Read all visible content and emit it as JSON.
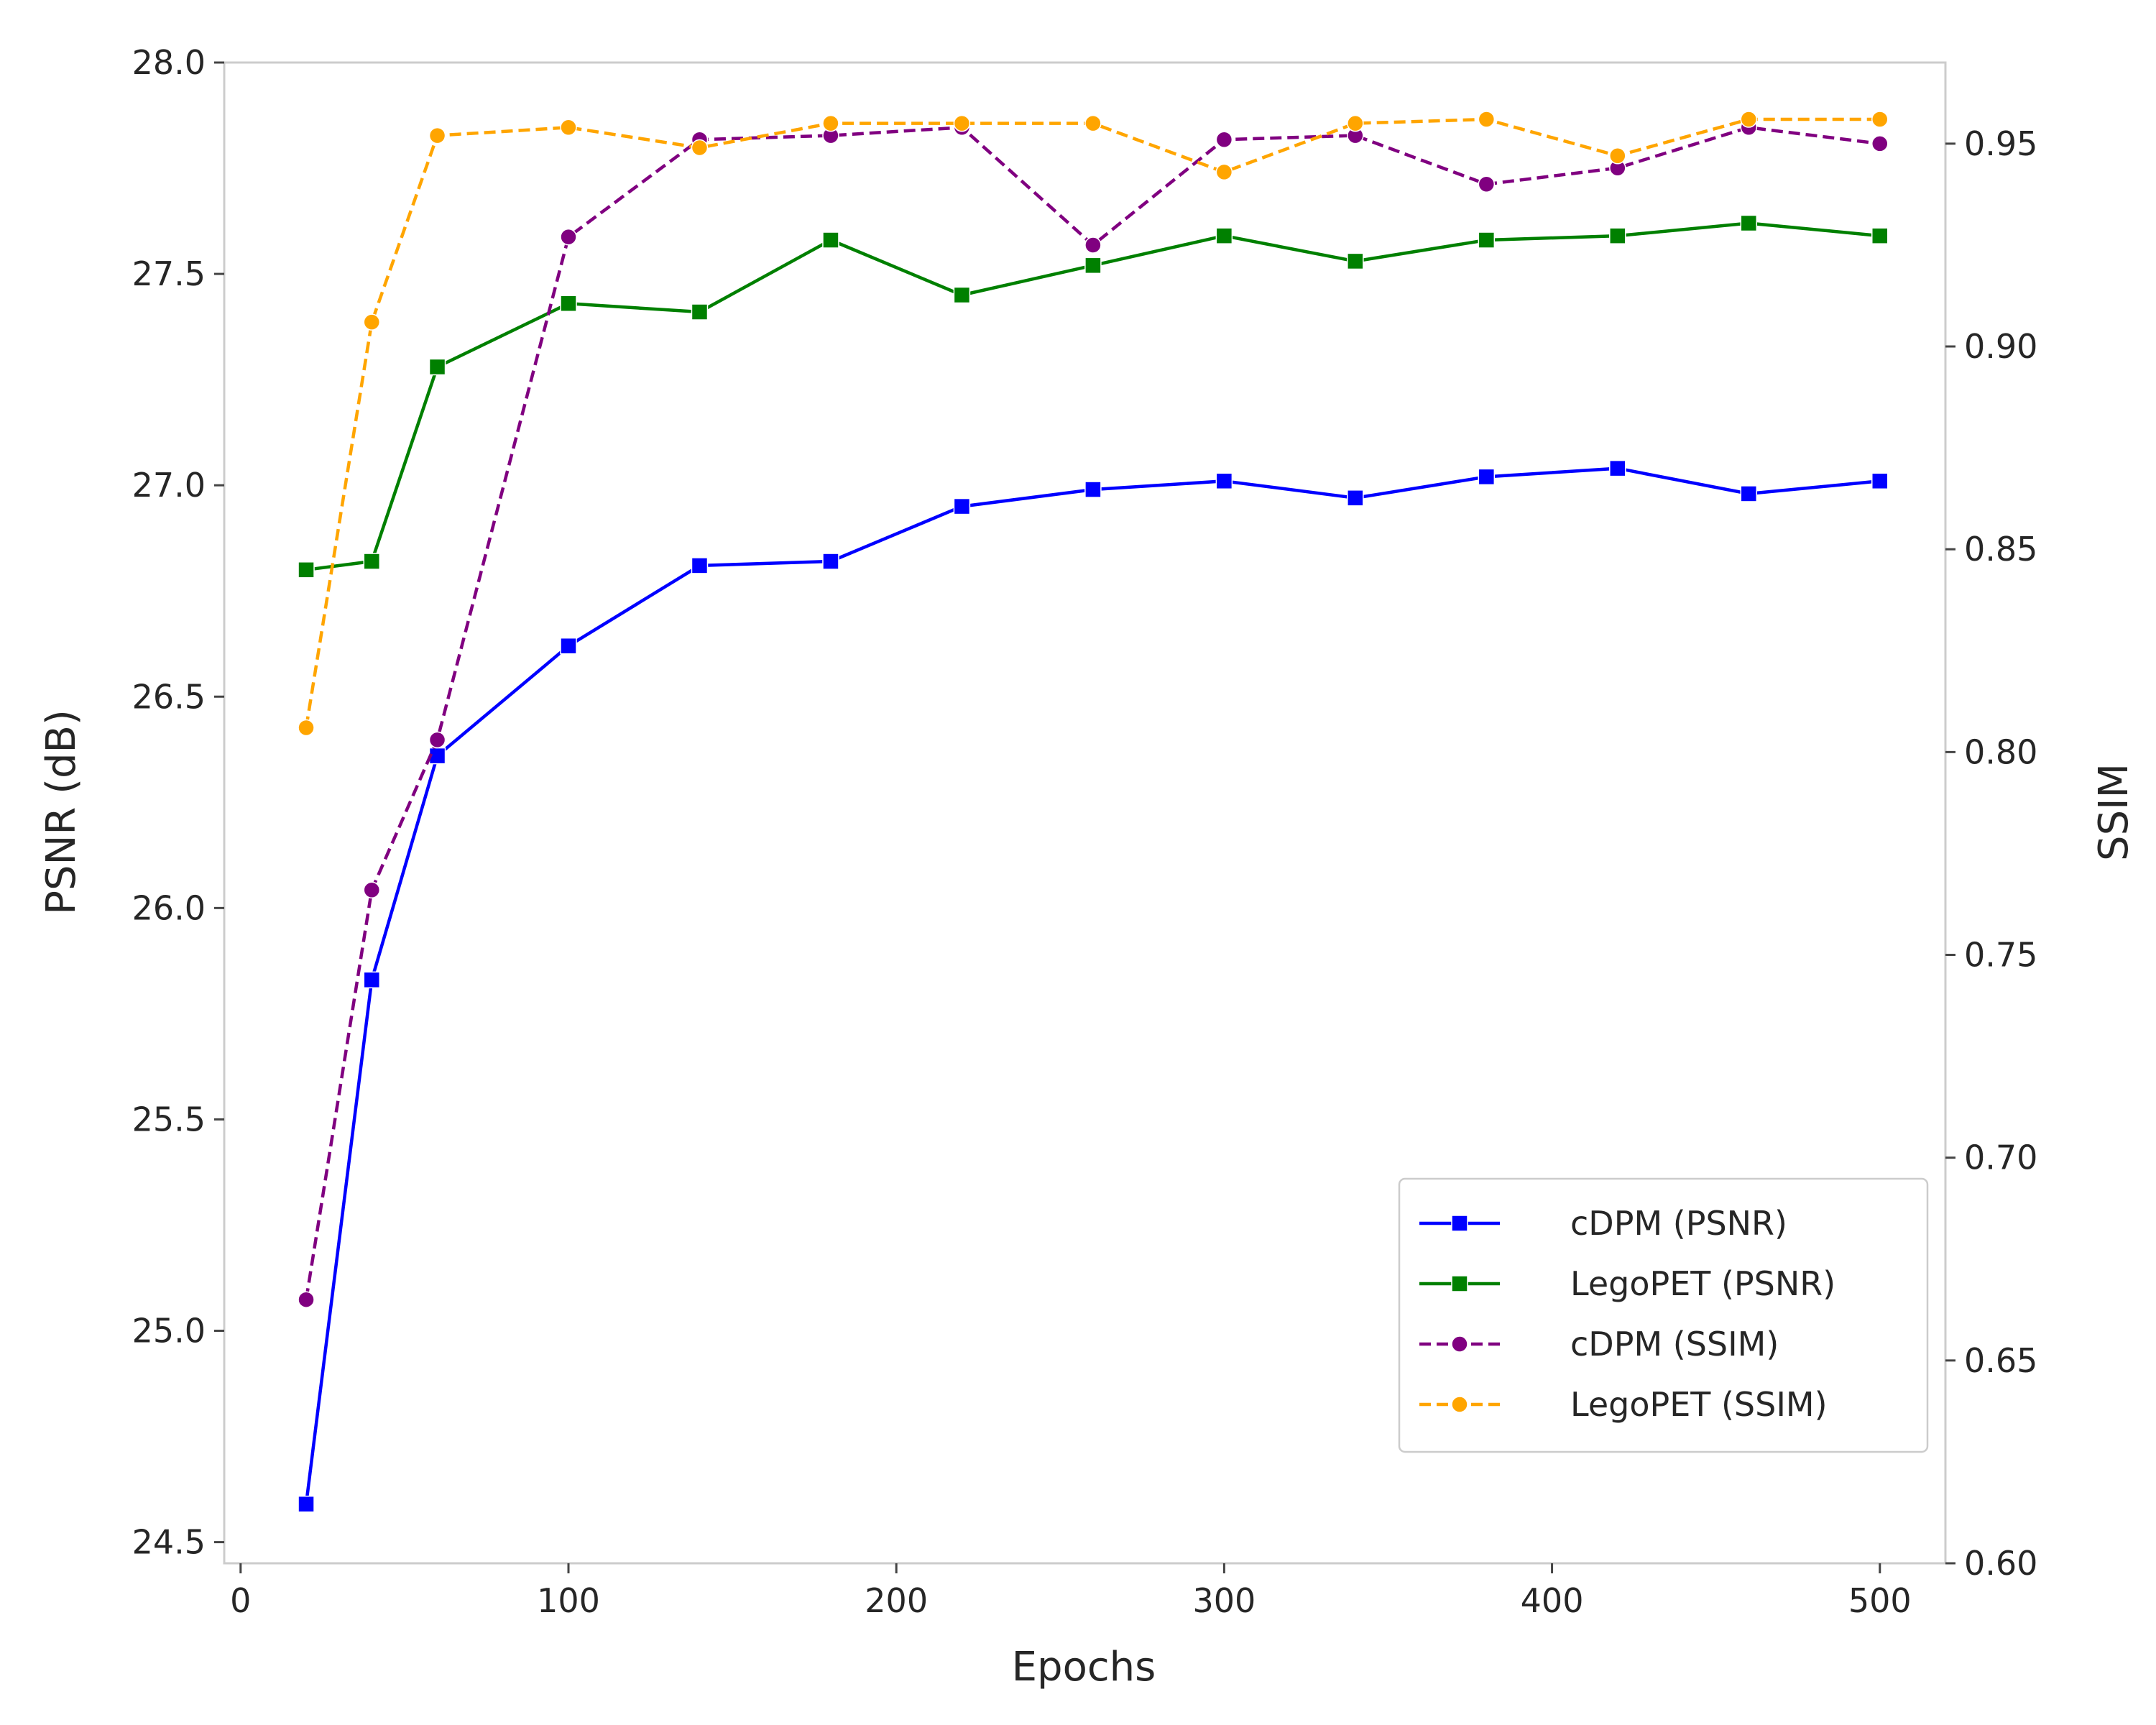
{
  "chart_data": {
    "type": "line",
    "xlabel": "Epochs",
    "ylabel": "PSNR (dB)",
    "y2label": "SSIM",
    "xlim": [
      -5,
      520
    ],
    "ylim": [
      24.45,
      28.0
    ],
    "y2lim": [
      0.6,
      0.97
    ],
    "xticks": [
      0,
      100,
      200,
      300,
      400,
      500
    ],
    "yticks": [
      24.5,
      25.0,
      25.5,
      26.0,
      26.5,
      27.0,
      27.5,
      28.0
    ],
    "y2ticks": [
      0.6,
      0.65,
      0.7,
      0.75,
      0.8,
      0.85,
      0.9,
      0.95
    ],
    "grid": false,
    "legend_position": "lower-right",
    "x": [
      20,
      40,
      60,
      100,
      140,
      180,
      220,
      260,
      300,
      340,
      380,
      420,
      460,
      500
    ],
    "series": [
      {
        "name": "cDPM (PSNR)",
        "axis": "left",
        "color": "#0000ff",
        "line_style": "solid",
        "marker": "square",
        "values": [
          24.59,
          25.83,
          26.36,
          26.62,
          26.81,
          26.82,
          26.95,
          26.99,
          27.01,
          26.97,
          27.02,
          27.04,
          26.98,
          27.01
        ]
      },
      {
        "name": "LegoPET (PSNR)",
        "axis": "left",
        "color": "#008000",
        "line_style": "solid",
        "marker": "square",
        "values": [
          26.8,
          26.82,
          27.28,
          27.43,
          27.41,
          27.58,
          27.45,
          27.52,
          27.59,
          27.53,
          27.58,
          27.59,
          27.62,
          27.59
        ]
      },
      {
        "name": "cDPM (SSIM)",
        "axis": "right",
        "color": "#800080",
        "line_style": "dashed",
        "marker": "circle",
        "values": [
          0.665,
          0.766,
          0.803,
          0.927,
          0.951,
          0.952,
          0.954,
          0.925,
          0.951,
          0.952,
          0.94,
          0.944,
          0.954,
          0.95
        ]
      },
      {
        "name": "LegoPET (SSIM)",
        "axis": "right",
        "color": "#ffa500",
        "line_style": "dashed",
        "marker": "circle",
        "values": [
          0.806,
          0.906,
          0.952,
          0.954,
          0.949,
          0.955,
          0.955,
          0.955,
          0.943,
          0.955,
          0.956,
          0.947,
          0.956,
          0.956
        ]
      }
    ]
  }
}
